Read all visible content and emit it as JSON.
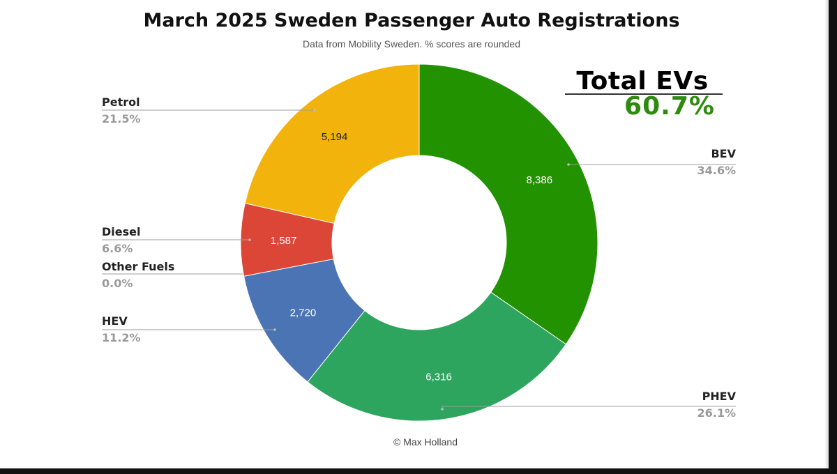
{
  "header": {
    "title": "March 2025 Sweden Passenger Auto Registrations",
    "subtitle": "Data from Mobility Sweden. % scores are rounded"
  },
  "callout": {
    "label": "Total EVs",
    "value": "60.7%",
    "value_color": "#2e8b10"
  },
  "footer": {
    "credit": "© Max Holland"
  },
  "chart_data": {
    "type": "pie",
    "donut": true,
    "title": "March 2025 Sweden Passenger Auto Registrations",
    "subtitle": "Data from Mobility Sweden. % scores are rounded",
    "slices": [
      {
        "name": "BEV",
        "value": 8386,
        "value_label": "8,386",
        "percent": "34.6%",
        "color": "#229200",
        "value_text_color": "#ffffff"
      },
      {
        "name": "PHEV",
        "value": 6316,
        "value_label": "6,316",
        "percent": "26.1%",
        "color": "#2ea55e",
        "value_text_color": "#ffffff"
      },
      {
        "name": "HEV",
        "value": 2720,
        "value_label": "2,720",
        "percent": "11.2%",
        "color": "#4a74b4",
        "value_text_color": "#ffffff"
      },
      {
        "name": "Other Fuels",
        "value": 0,
        "value_label": "",
        "percent": "0.0%",
        "color": "#7f7f7f",
        "value_text_color": "#ffffff"
      },
      {
        "name": "Diesel",
        "value": 1587,
        "value_label": "1,587",
        "percent": "6.6%",
        "color": "#dc4636",
        "value_text_color": "#ffffff"
      },
      {
        "name": "Petrol",
        "value": 5194,
        "value_label": "5,194",
        "percent": "21.5%",
        "color": "#f2b30c",
        "value_text_color": "#222222"
      }
    ],
    "start_angle": "12 o'clock, clockwise",
    "legend": "none (leader-line labels)"
  }
}
